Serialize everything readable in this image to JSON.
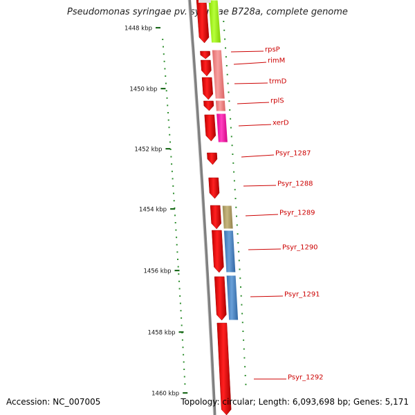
{
  "title": "Pseudomonas syringae pv. syringae B728a, complete genome",
  "accession": "Accession: NC_007005",
  "summary": "Topology: circular; Length: 6,093,698 bp; Genes: 5,171",
  "ticks": [
    "1448 kbp",
    "1450 kbp",
    "1452 kbp",
    "1454 kbp",
    "1456 kbp",
    "1458 kbp",
    "1460 kbp"
  ],
  "genes": [
    "rpsP",
    "rimM",
    "trmD",
    "rplS",
    "xerD",
    "Psyr_1287",
    "Psyr_1288",
    "Psyr_1289",
    "Psyr_1290",
    "Psyr_1291",
    "Psyr_1292"
  ],
  "colors": {
    "cds": "#ff0000",
    "label": "#cc0000",
    "tick": "#1e6b1e",
    "dots": "#2f8f2f",
    "backbone": "#808080",
    "lime": "#a6ff1a",
    "salmon": "#f08080",
    "magenta": "#ff1aa6",
    "olive": "#b8a870",
    "steelblue": "#4a86c8"
  }
}
